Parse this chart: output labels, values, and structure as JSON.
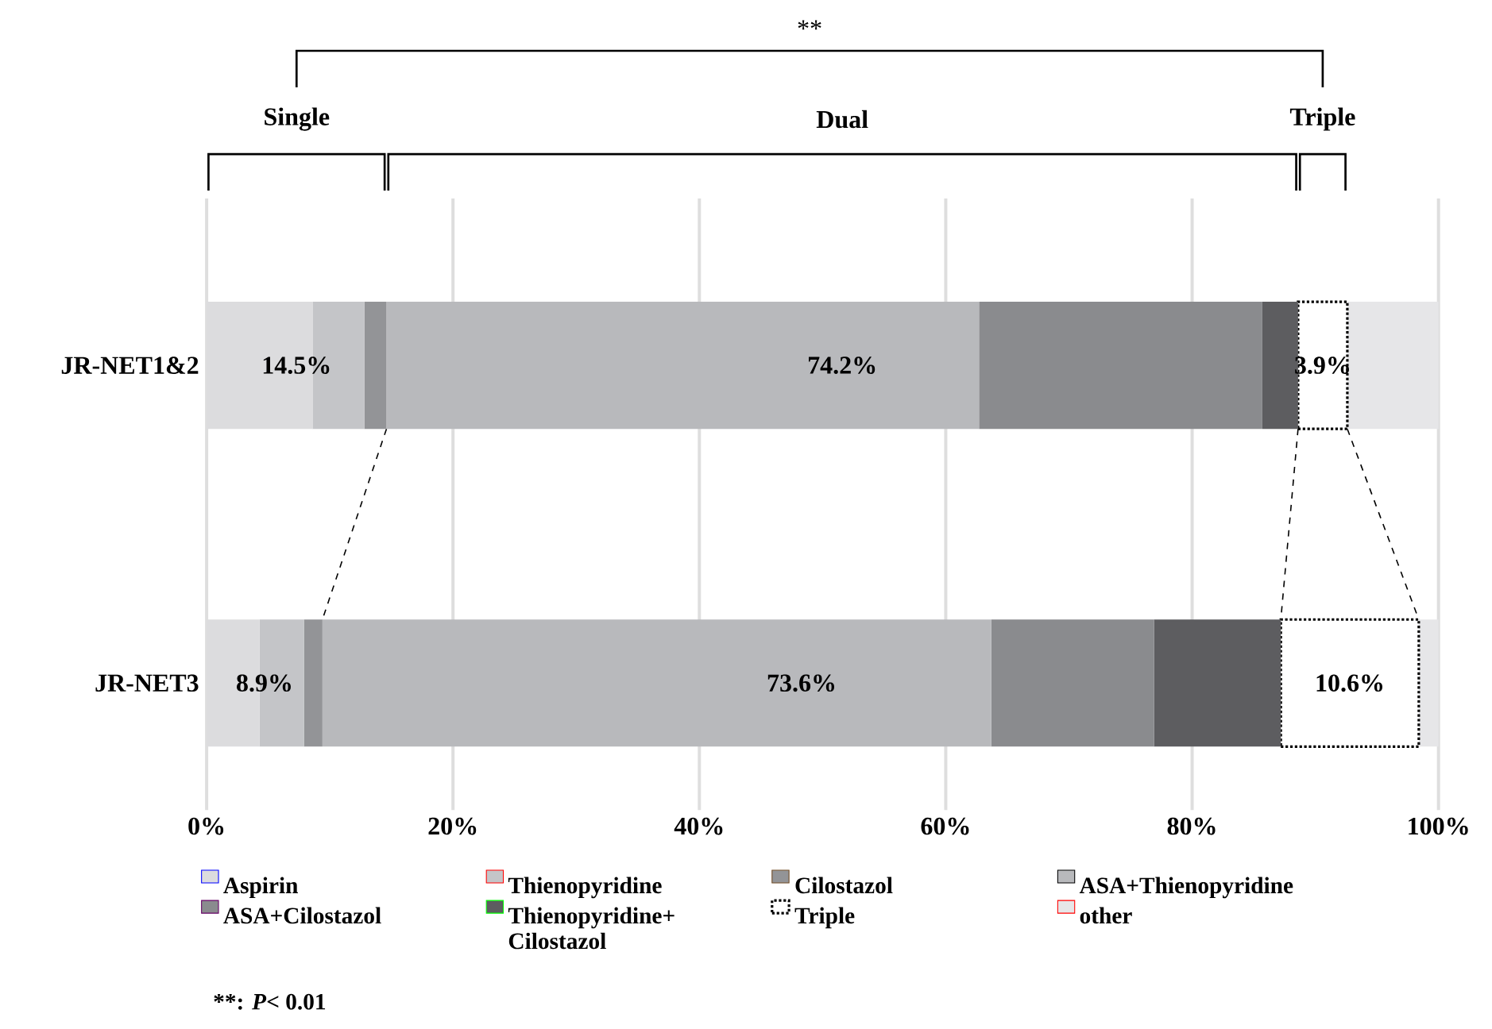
{
  "chart_data": {
    "type": "bar",
    "orientation": "horizontal",
    "stacked": true,
    "categories": [
      "JR-NET1&2",
      "JR-NET3"
    ],
    "series": [
      {
        "name": "Aspirin",
        "color": "#dcdcde",
        "values": [
          8.6,
          4.3
        ]
      },
      {
        "name": "Thienopyridine",
        "color": "#c4c5c8",
        "values": [
          4.2,
          3.6
        ]
      },
      {
        "name": "Cilostazol",
        "color": "#939497",
        "values": [
          1.8,
          1.5
        ]
      },
      {
        "name": "ASA+Thienopyridine",
        "color": "#b8b9bc",
        "values": [
          48.1,
          54.3
        ]
      },
      {
        "name": "ASA+Cilostazol",
        "color": "#8a8b8e",
        "values": [
          23.0,
          13.2
        ]
      },
      {
        "name": "Thienopyridine+ Cilostazol",
        "color": "#5d5d60",
        "values": [
          2.9,
          10.3
        ]
      },
      {
        "name": "Triple",
        "color": "#ffffff",
        "values": [
          4.0,
          11.2
        ]
      },
      {
        "name": "other",
        "color": "#e6e6e8",
        "values": [
          7.4,
          1.6
        ]
      }
    ],
    "xlim": [
      0,
      100
    ],
    "xticks": [
      {
        "value": 0,
        "label": "0%"
      },
      {
        "value": 20,
        "label": "20%"
      },
      {
        "value": 40,
        "label": "40%"
      },
      {
        "value": 60,
        "label": "60%"
      },
      {
        "value": 80,
        "label": "80%"
      },
      {
        "value": 100,
        "label": "100%"
      }
    ],
    "grid": "x",
    "legend": "bottom",
    "annotations": [
      "14.5%",
      "74.2%",
      "3.9%",
      "8.9%",
      "73.6%",
      "10.6%",
      "Single",
      "Dual",
      "Triple",
      "**",
      "**: *P*< 0.01"
    ]
  }
}
